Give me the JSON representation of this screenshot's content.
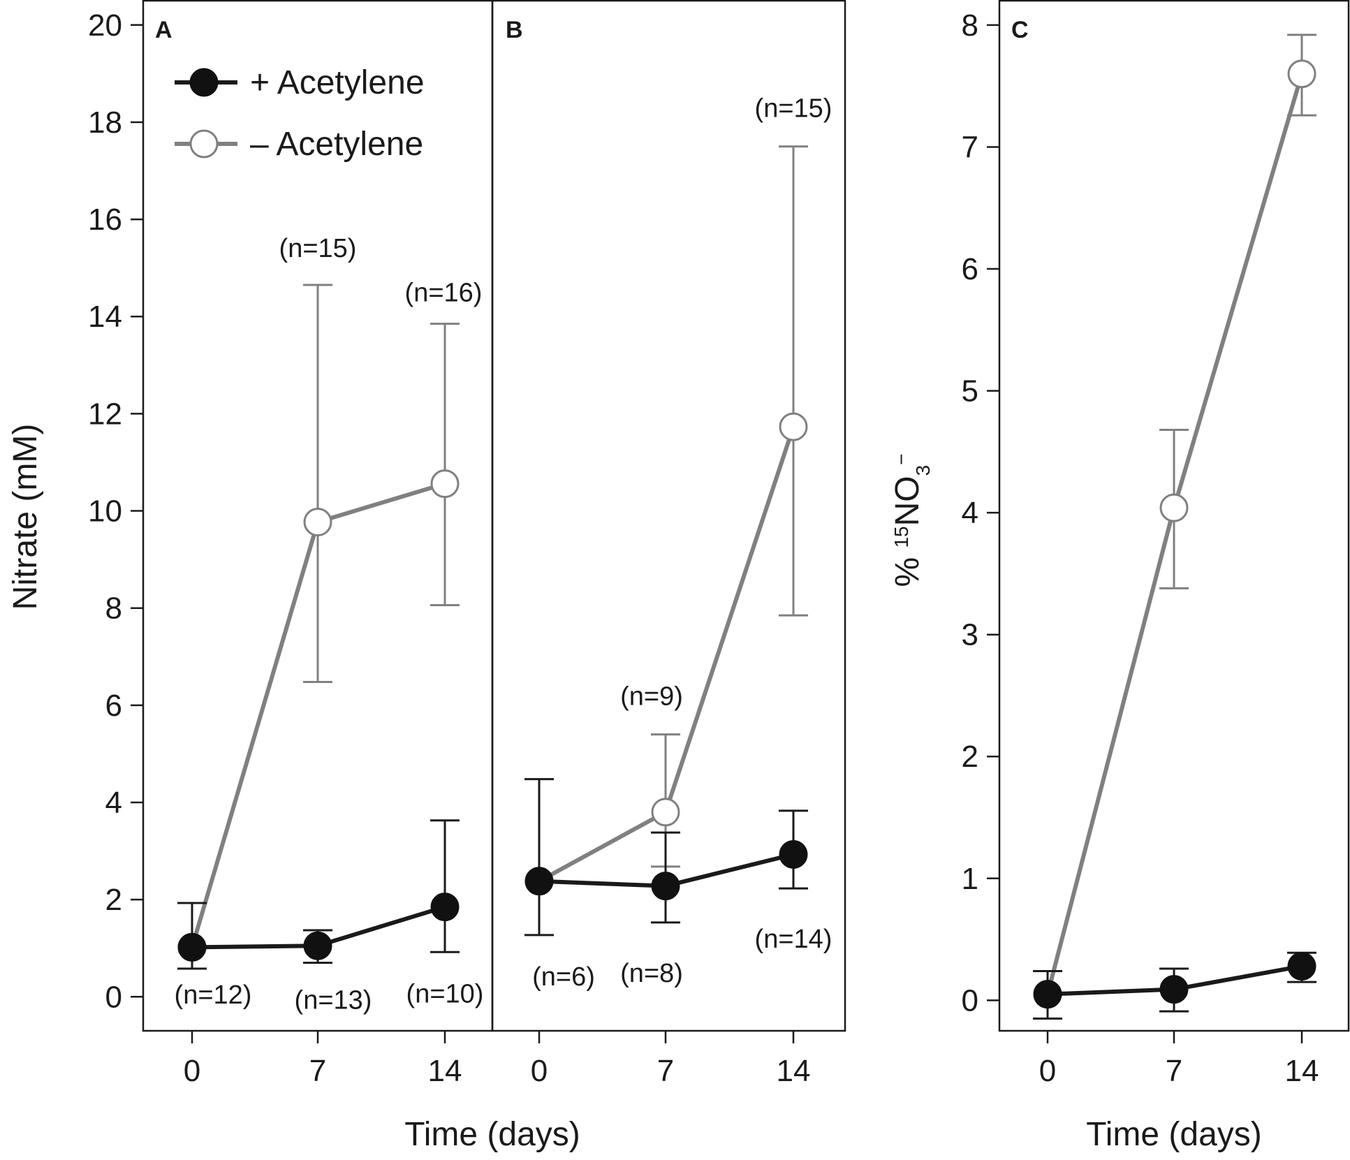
{
  "legend": {
    "series_plus": "+ Acetylene",
    "series_minus": "– Acetylene"
  },
  "colors": {
    "plus": "#1a1a1a",
    "minus": "#808080",
    "plus_fill": "#111111",
    "minus_fill": "#ffffff"
  },
  "chart_data": [
    {
      "type": "line",
      "panel": "A",
      "ylabel": "Nitrate (mM)",
      "xlabel": "Time (days)",
      "categories": [
        "0",
        "7",
        "14"
      ],
      "ylim": [
        -0.7,
        20.5
      ],
      "yticks": [
        "0",
        "2",
        "4",
        "6",
        "8",
        "10",
        "12",
        "14",
        "16",
        "18",
        "20"
      ],
      "series": [
        {
          "name": "+ Acetylene",
          "values": [
            1.02,
            1.05,
            1.85
          ],
          "err_low": [
            0.58,
            0.7,
            0.92
          ],
          "err_high": [
            1.93,
            1.37,
            3.63
          ],
          "n_labels": [
            "(n=12)",
            "(n=13)",
            "(n=10)"
          ]
        },
        {
          "name": "– Acetylene",
          "values": [
            1.02,
            9.77,
            10.56
          ],
          "err_low": [
            null,
            6.48,
            8.06
          ],
          "err_high": [
            null,
            14.65,
            13.85
          ],
          "n_labels": [
            "",
            "(n=15)",
            "(n=16)"
          ]
        }
      ]
    },
    {
      "type": "line",
      "panel": "B",
      "xlabel": "Time (days)",
      "categories": [
        "0",
        "7",
        "14"
      ],
      "ylim": [
        -0.7,
        20.5
      ],
      "series": [
        {
          "name": "+ Acetylene",
          "values": [
            2.38,
            2.28,
            2.93
          ],
          "err_low": [
            1.27,
            1.53,
            2.23
          ],
          "err_high": [
            4.48,
            3.38,
            3.83
          ],
          "n_labels": [
            "(n=6)",
            "(n=8)",
            "(n=14)"
          ]
        },
        {
          "name": "– Acetylene",
          "values": [
            2.38,
            3.8,
            11.73
          ],
          "err_low": [
            null,
            2.68,
            7.85
          ],
          "err_high": [
            null,
            5.4,
            17.5
          ],
          "n_labels": [
            "",
            "(n=9)",
            "(n=15)"
          ]
        }
      ]
    },
    {
      "type": "line",
      "panel": "C",
      "ylabel_parts": [
        "% ",
        "15",
        "NO",
        "3",
        "−"
      ],
      "xlabel": "Time (days)",
      "categories": [
        "0",
        "7",
        "14"
      ],
      "ylim": [
        -0.25,
        8.2
      ],
      "yticks": [
        "0",
        "1",
        "2",
        "3",
        "4",
        "5",
        "6",
        "7",
        "8"
      ],
      "series": [
        {
          "name": "+ Acetylene",
          "values": [
            0.05,
            0.09,
            0.28
          ],
          "err_low": [
            -0.15,
            -0.09,
            0.15
          ],
          "err_high": [
            0.24,
            0.26,
            0.39
          ],
          "n_labels": [
            "",
            "",
            ""
          ]
        },
        {
          "name": "– Acetylene",
          "values": [
            0.05,
            4.04,
            7.6
          ],
          "err_low": [
            null,
            3.38,
            7.26
          ],
          "err_high": [
            null,
            4.68,
            7.92
          ],
          "n_labels": [
            "",
            "",
            ""
          ]
        }
      ]
    }
  ]
}
